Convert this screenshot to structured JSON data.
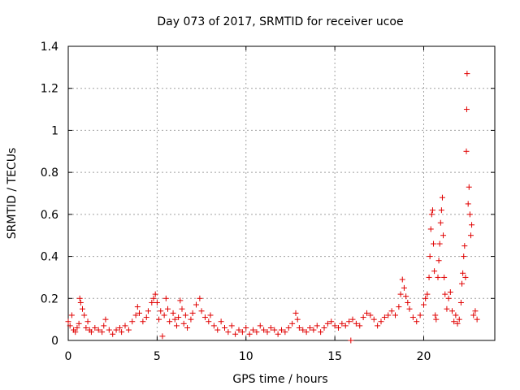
{
  "chart_data": {
    "type": "scatter",
    "title": "Day 073 of 2017, SRMTID for receiver ucoe",
    "xlabel": "GPS time / hours",
    "ylabel": "SRMTID / TECUs",
    "xlim": [
      0,
      24
    ],
    "ylim": [
      0,
      1.4
    ],
    "x_ticks": [
      0,
      5,
      10,
      15,
      20
    ],
    "y_ticks": [
      0,
      0.2,
      0.4,
      0.6,
      0.8,
      1.0,
      1.2,
      1.4
    ],
    "x_tick_labels": [
      "0",
      "5",
      "10",
      "15",
      "20"
    ],
    "y_tick_labels": [
      "0",
      "0.2",
      "0.4",
      "0.6",
      "0.8",
      "1",
      "1.2",
      "1.4"
    ],
    "grid": true,
    "marker": "+",
    "marker_color": "#e00000",
    "series": [
      {
        "name": "SRMTID",
        "points": [
          [
            0.0,
            0.09
          ],
          [
            0.1,
            0.07
          ],
          [
            0.2,
            0.12
          ],
          [
            0.3,
            0.05
          ],
          [
            0.4,
            0.04
          ],
          [
            0.5,
            0.06
          ],
          [
            0.6,
            0.08
          ],
          [
            0.65,
            0.2
          ],
          [
            0.7,
            0.18
          ],
          [
            0.8,
            0.15
          ],
          [
            0.9,
            0.12
          ],
          [
            1.0,
            0.06
          ],
          [
            1.1,
            0.09
          ],
          [
            1.2,
            0.05
          ],
          [
            1.3,
            0.04
          ],
          [
            1.5,
            0.06
          ],
          [
            1.7,
            0.05
          ],
          [
            1.9,
            0.04
          ],
          [
            2.0,
            0.07
          ],
          [
            2.1,
            0.1
          ],
          [
            2.3,
            0.05
          ],
          [
            2.5,
            0.03
          ],
          [
            2.7,
            0.05
          ],
          [
            2.9,
            0.06
          ],
          [
            3.0,
            0.04
          ],
          [
            3.2,
            0.07
          ],
          [
            3.4,
            0.05
          ],
          [
            3.6,
            0.09
          ],
          [
            3.8,
            0.12
          ],
          [
            3.9,
            0.16
          ],
          [
            4.0,
            0.13
          ],
          [
            4.2,
            0.09
          ],
          [
            4.4,
            0.11
          ],
          [
            4.5,
            0.14
          ],
          [
            4.7,
            0.18
          ],
          [
            4.8,
            0.2
          ],
          [
            4.9,
            0.22
          ],
          [
            5.0,
            0.18
          ],
          [
            5.1,
            0.1
          ],
          [
            5.2,
            0.14
          ],
          [
            5.3,
            0.02
          ],
          [
            5.4,
            0.12
          ],
          [
            5.5,
            0.2
          ],
          [
            5.6,
            0.15
          ],
          [
            5.7,
            0.09
          ],
          [
            5.9,
            0.13
          ],
          [
            6.0,
            0.1
          ],
          [
            6.1,
            0.07
          ],
          [
            6.2,
            0.11
          ],
          [
            6.3,
            0.19
          ],
          [
            6.4,
            0.15
          ],
          [
            6.5,
            0.08
          ],
          [
            6.6,
            0.12
          ],
          [
            6.7,
            0.06
          ],
          [
            6.9,
            0.1
          ],
          [
            7.0,
            0.13
          ],
          [
            7.2,
            0.17
          ],
          [
            7.4,
            0.2
          ],
          [
            7.5,
            0.14
          ],
          [
            7.7,
            0.11
          ],
          [
            7.9,
            0.09
          ],
          [
            8.0,
            0.12
          ],
          [
            8.2,
            0.07
          ],
          [
            8.4,
            0.05
          ],
          [
            8.6,
            0.09
          ],
          [
            8.8,
            0.06
          ],
          [
            9.0,
            0.04
          ],
          [
            9.2,
            0.07
          ],
          [
            9.4,
            0.03
          ],
          [
            9.6,
            0.05
          ],
          [
            9.8,
            0.04
          ],
          [
            10.0,
            0.06
          ],
          [
            10.2,
            0.03
          ],
          [
            10.4,
            0.05
          ],
          [
            10.6,
            0.04
          ],
          [
            10.8,
            0.07
          ],
          [
            11.0,
            0.05
          ],
          [
            11.2,
            0.04
          ],
          [
            11.4,
            0.06
          ],
          [
            11.6,
            0.05
          ],
          [
            11.8,
            0.03
          ],
          [
            12.0,
            0.05
          ],
          [
            12.2,
            0.04
          ],
          [
            12.4,
            0.06
          ],
          [
            12.6,
            0.08
          ],
          [
            12.8,
            0.13
          ],
          [
            12.9,
            0.1
          ],
          [
            13.0,
            0.06
          ],
          [
            13.2,
            0.05
          ],
          [
            13.4,
            0.04
          ],
          [
            13.6,
            0.06
          ],
          [
            13.8,
            0.05
          ],
          [
            14.0,
            0.07
          ],
          [
            14.2,
            0.04
          ],
          [
            14.4,
            0.06
          ],
          [
            14.6,
            0.08
          ],
          [
            14.8,
            0.09
          ],
          [
            15.0,
            0.07
          ],
          [
            15.2,
            0.06
          ],
          [
            15.4,
            0.08
          ],
          [
            15.6,
            0.07
          ],
          [
            15.8,
            0.09
          ],
          [
            15.9,
            0.0
          ],
          [
            16.0,
            0.1
          ],
          [
            16.2,
            0.08
          ],
          [
            16.4,
            0.07
          ],
          [
            16.6,
            0.11
          ],
          [
            16.8,
            0.13
          ],
          [
            17.0,
            0.12
          ],
          [
            17.2,
            0.1
          ],
          [
            17.4,
            0.07
          ],
          [
            17.6,
            0.09
          ],
          [
            17.8,
            0.11
          ],
          [
            18.0,
            0.12
          ],
          [
            18.2,
            0.14
          ],
          [
            18.4,
            0.12
          ],
          [
            18.6,
            0.16
          ],
          [
            18.7,
            0.22
          ],
          [
            18.8,
            0.29
          ],
          [
            18.9,
            0.25
          ],
          [
            19.0,
            0.21
          ],
          [
            19.1,
            0.18
          ],
          [
            19.2,
            0.15
          ],
          [
            19.4,
            0.11
          ],
          [
            19.6,
            0.09
          ],
          [
            19.8,
            0.12
          ],
          [
            20.0,
            0.17
          ],
          [
            20.1,
            0.2
          ],
          [
            20.2,
            0.22
          ],
          [
            20.3,
            0.3
          ],
          [
            20.35,
            0.4
          ],
          [
            20.4,
            0.53
          ],
          [
            20.45,
            0.6
          ],
          [
            20.5,
            0.62
          ],
          [
            20.55,
            0.46
          ],
          [
            20.6,
            0.33
          ],
          [
            20.65,
            0.12
          ],
          [
            20.7,
            0.1
          ],
          [
            20.8,
            0.3
          ],
          [
            20.85,
            0.38
          ],
          [
            20.9,
            0.46
          ],
          [
            20.95,
            0.56
          ],
          [
            21.0,
            0.62
          ],
          [
            21.05,
            0.68
          ],
          [
            21.1,
            0.5
          ],
          [
            21.15,
            0.3
          ],
          [
            21.2,
            0.22
          ],
          [
            21.3,
            0.15
          ],
          [
            21.4,
            0.2
          ],
          [
            21.5,
            0.23
          ],
          [
            21.6,
            0.14
          ],
          [
            21.7,
            0.09
          ],
          [
            21.8,
            0.12
          ],
          [
            21.9,
            0.08
          ],
          [
            22.0,
            0.1
          ],
          [
            22.1,
            0.18
          ],
          [
            22.15,
            0.27
          ],
          [
            22.2,
            0.32
          ],
          [
            22.25,
            0.4
          ],
          [
            22.3,
            0.45
          ],
          [
            22.35,
            0.3
          ],
          [
            22.4,
            0.9
          ],
          [
            22.42,
            1.1
          ],
          [
            22.44,
            1.27
          ],
          [
            22.5,
            0.65
          ],
          [
            22.55,
            0.73
          ],
          [
            22.6,
            0.6
          ],
          [
            22.65,
            0.5
          ],
          [
            22.7,
            0.55
          ],
          [
            22.8,
            0.12
          ],
          [
            22.9,
            0.14
          ],
          [
            23.0,
            0.1
          ]
        ]
      }
    ]
  }
}
